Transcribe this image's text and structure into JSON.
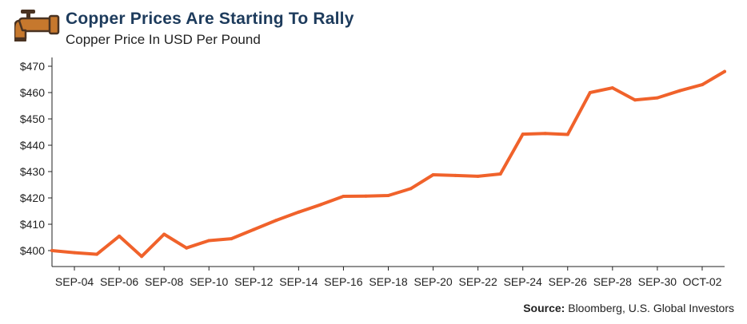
{
  "header": {
    "title": "Copper Prices Are Starting To Rally",
    "subtitle": "Copper Price In USD Per Pound",
    "icon": "faucet-icon"
  },
  "source": {
    "label": "Source:",
    "text": "Bloomberg, U.S. Global Investors"
  },
  "colors": {
    "line": "#f0622b",
    "title": "#1d3b5c",
    "faucet": "#c6782d"
  },
  "chart_data": {
    "type": "line",
    "title": "Copper Prices Are Starting To Rally",
    "subtitle": "Copper Price In USD Per Pound",
    "xlabel": "",
    "ylabel": "",
    "ylim": [
      397,
      470
    ],
    "y_ticks": [
      400,
      410,
      420,
      430,
      440,
      450,
      460,
      470
    ],
    "y_tick_labels": [
      "$400",
      "$410",
      "$420",
      "$430",
      "$440",
      "$450",
      "$460",
      "$470"
    ],
    "x_tick_labels": [
      "SEP-04",
      "SEP-06",
      "SEP-08",
      "SEP-10",
      "SEP-12",
      "SEP-14",
      "SEP-16",
      "SEP-18",
      "SEP-20",
      "SEP-22",
      "SEP-24",
      "SEP-26",
      "SEP-28",
      "SEP-30",
      "OCT-02"
    ],
    "grid": false,
    "series": [
      {
        "name": "",
        "x": [
          "SEP-03",
          "SEP-04",
          "SEP-05",
          "SEP-06",
          "SEP-07",
          "SEP-08",
          "SEP-09",
          "SEP-10",
          "SEP-11",
          "SEP-12",
          "SEP-13",
          "SEP-14",
          "SEP-15",
          "SEP-16",
          "SEP-17",
          "SEP-18",
          "SEP-19",
          "SEP-20",
          "SEP-21",
          "SEP-22",
          "SEP-23",
          "SEP-24",
          "SEP-25",
          "SEP-26",
          "SEP-27",
          "SEP-28",
          "SEP-29",
          "SEP-30",
          "OCT-01",
          "OCT-02",
          "OCT-03"
        ],
        "values": [
          400.0,
          399.2,
          398.6,
          405.5,
          397.8,
          406.2,
          401.0,
          403.8,
          404.5,
          408.0,
          411.5,
          414.6,
          417.5,
          420.6,
          420.7,
          420.9,
          423.5,
          428.8,
          428.5,
          428.2,
          429.1,
          444.2,
          444.5,
          444.1,
          460.0,
          461.8,
          457.2,
          458.0,
          460.7,
          463.0,
          468.0
        ]
      }
    ]
  }
}
